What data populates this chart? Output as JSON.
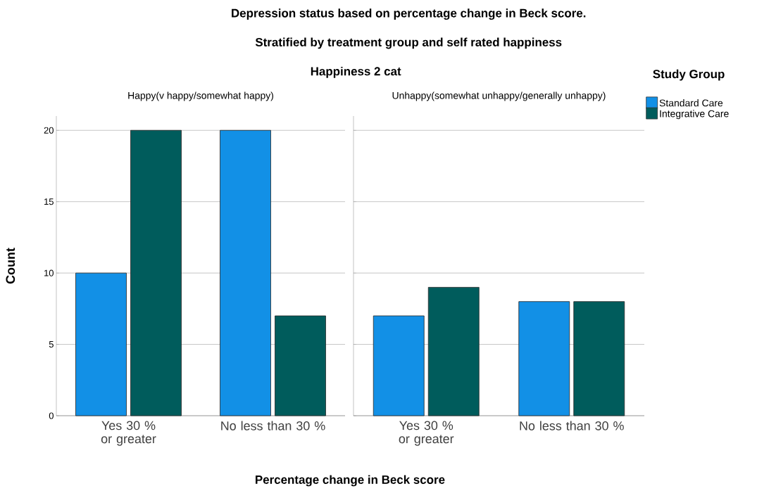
{
  "chart_data": [
    {
      "type": "bar",
      "title": "Happy(v happy/somewhat happy)",
      "categories": [
        "Yes 30 % or greater",
        "No less than 30 %"
      ],
      "series": [
        {
          "color": "#1290e6",
          "values": [
            10,
            20
          ]
        },
        {
          "color": "#005c5c",
          "values": [
            20,
            7
          ]
        }
      ],
      "xlabel": "Percentage change in Beck score",
      "ylabel": "Count",
      "annotations": [
        "Depression status based on percentage change in Beck score.",
        "Stratified by treatment group and self rated happiness",
        "Happiness 2 cat"
      ],
      "ylim": [
        0,
        21
      ],
      "yticks": [
        0,
        5,
        10,
        15,
        20
      ],
      "grid": "y"
    },
    {
      "type": "bar",
      "title": "Unhappy(somewhat unhappy/generally unhappy)",
      "categories": [
        "Yes 30 % or greater",
        "No less than 30 %"
      ],
      "series": [
        {
          "name": "Standard Care",
          "color": "#1290e6",
          "values": [
            7,
            8
          ]
        },
        {
          "name": "Integrative Care",
          "color": "#005c5c",
          "values": [
            9,
            8
          ]
        }
      ],
      "legend": "right",
      "legend_title": "Study Group",
      "ylim": [
        0,
        21
      ],
      "yticks": [
        0,
        5,
        10,
        15,
        20
      ],
      "grid": "y",
      "tick_labels": "x"
    }
  ]
}
